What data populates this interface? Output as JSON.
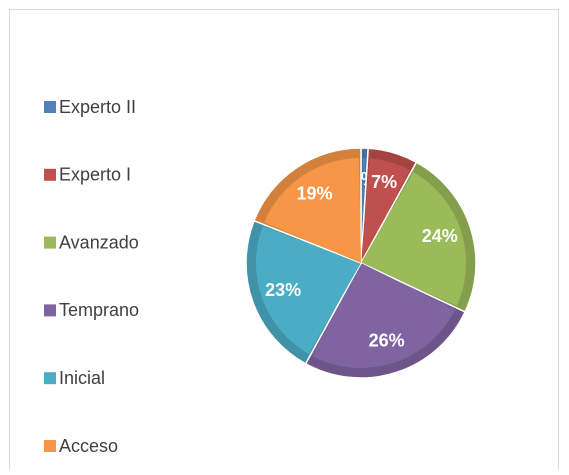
{
  "chart_data": {
    "type": "pie",
    "categories": [
      "Experto II",
      "Experto I",
      "Avanzado",
      "Temprano",
      "Inicial",
      "Acceso"
    ],
    "values": [
      1,
      7,
      24,
      26,
      23,
      19
    ],
    "value_labels": [
      "1%",
      "7%",
      "24%",
      "26%",
      "23%",
      "19%"
    ],
    "colors": [
      "#4f81bd",
      "#c0504d",
      "#9bbb59",
      "#8064a2",
      "#4bacc6",
      "#f79646"
    ],
    "legend": "left"
  }
}
